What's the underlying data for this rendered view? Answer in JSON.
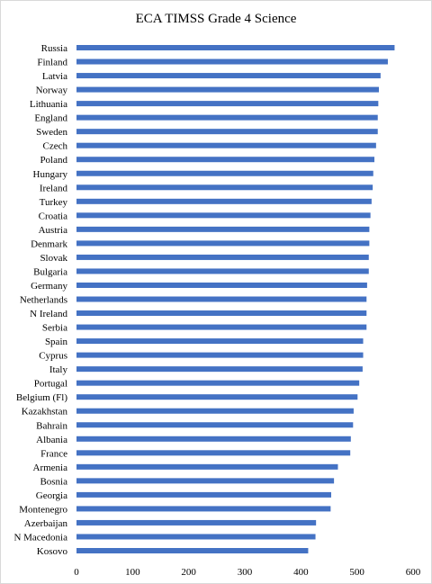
{
  "chart_data": {
    "type": "bar",
    "orientation": "horizontal",
    "title": "ECA TIMSS Grade 4 Science",
    "xlabel": "",
    "ylabel": "",
    "xlim": [
      0,
      600
    ],
    "xticks": [
      "0",
      "100",
      "200",
      "300",
      "400",
      "500",
      "600"
    ],
    "grid": false,
    "legend": "none",
    "bar_color": "#4472C4",
    "categories": [
      "Russia",
      "Finland",
      "Latvia",
      "Norway",
      "Lithuania",
      "England",
      "Sweden",
      "Czech",
      "Poland",
      "Hungary",
      "Ireland",
      "Turkey",
      "Croatia",
      "Austria",
      "Denmark",
      "Slovak",
      "Bulgaria",
      "Germany",
      "Netherlands",
      "N Ireland",
      "Serbia",
      "Spain",
      "Cyprus",
      "Italy",
      "Portugal",
      "Belgium (Fl)",
      "Kazakhstan",
      "Bahrain",
      "Albania",
      "France",
      "Armenia",
      "Bosnia",
      "Georgia",
      "Montenegro",
      "Azerbaijan",
      "N Macedonia",
      "Kosovo"
    ],
    "values": [
      567,
      555,
      542,
      539,
      538,
      537,
      537,
      534,
      531,
      529,
      528,
      526,
      524,
      522,
      522,
      521,
      521,
      518,
      517,
      517,
      517,
      511,
      511,
      510,
      504,
      501,
      494,
      493,
      489,
      488,
      466,
      459,
      454,
      453,
      427,
      426,
      413
    ]
  }
}
